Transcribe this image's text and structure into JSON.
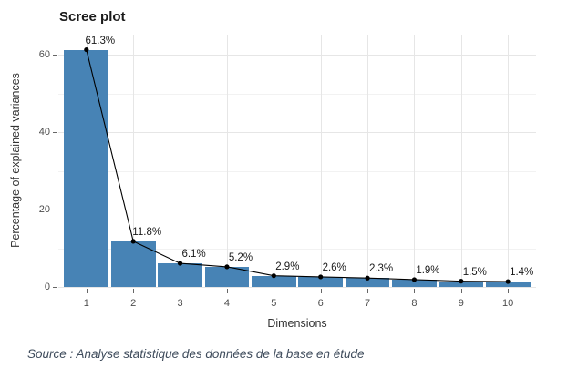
{
  "title": "Scree plot",
  "caption": "Source : Analyse statistique des données de la base en étude",
  "colors": {
    "bar_fill": "#4783b5",
    "line": "#000000",
    "point": "#000000",
    "grid_major": "#e6e6e6",
    "grid_minor": "#f2f2f2",
    "tick_text": "#4d4d4d",
    "axis_title_text": "#333333",
    "title_text": "#1a1a1a",
    "caption_text": "#3f4c5c",
    "background": "#ffffff"
  },
  "chart_data": {
    "type": "bar",
    "overlay": "line",
    "title": "Scree plot",
    "xlabel": "Dimensions",
    "ylabel": "Percentage of explained variances",
    "categories": [
      "1",
      "2",
      "3",
      "4",
      "5",
      "6",
      "7",
      "8",
      "9",
      "10"
    ],
    "values": [
      61.3,
      11.8,
      6.1,
      5.2,
      2.9,
      2.6,
      2.3,
      1.9,
      1.5,
      1.4
    ],
    "point_labels": [
      "61.3%",
      "11.8%",
      "6.1%",
      "5.2%",
      "2.9%",
      "2.6%",
      "2.3%",
      "1.9%",
      "1.5%",
      "1.4%"
    ],
    "ylim": [
      0,
      65.2
    ],
    "y_major_ticks": [
      0,
      20,
      40,
      60
    ],
    "y_minor_gridlines": [
      10,
      30,
      50
    ],
    "grid": true,
    "legend": "none"
  }
}
